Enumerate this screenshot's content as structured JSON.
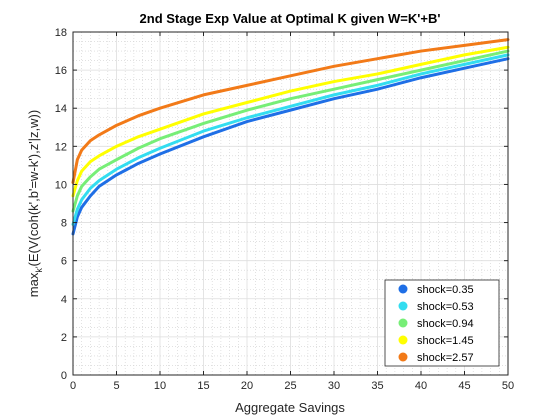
{
  "chart_data": {
    "type": "line",
    "title": "2nd Stage Exp Value at Optimal K given W=K'+B'",
    "xlabel": "Aggregate Savings",
    "ylabel_parts": [
      "max",
      "k'",
      "(E(V(coh(k',b'=w-k'),z'|z,w))"
    ],
    "xlim": [
      0,
      50
    ],
    "ylim": [
      0,
      18
    ],
    "xticks": [
      "0",
      "5",
      "10",
      "15",
      "20",
      "25",
      "30",
      "35",
      "40",
      "45",
      "50"
    ],
    "yticks": [
      "0",
      "2",
      "4",
      "6",
      "8",
      "10",
      "12",
      "14",
      "16",
      "18"
    ],
    "grid": true,
    "minor_grid": true,
    "legend_position": "bottom-right",
    "series": [
      {
        "name": "shock=0.35",
        "color": "#1f6fe6",
        "x": [
          0,
          0.5,
          1,
          2,
          3,
          5,
          7.5,
          10,
          15,
          20,
          25,
          30,
          35,
          40,
          45,
          50
        ],
        "values": [
          7.4,
          8.3,
          8.8,
          9.4,
          9.9,
          10.5,
          11.1,
          11.6,
          12.5,
          13.3,
          13.9,
          14.5,
          15.0,
          15.6,
          16.1,
          16.6
        ]
      },
      {
        "name": "shock=0.53",
        "color": "#33ddf0",
        "x": [
          0,
          0.5,
          1,
          2,
          3,
          5,
          7.5,
          10,
          15,
          20,
          25,
          30,
          35,
          40,
          45,
          50
        ],
        "values": [
          7.9,
          8.7,
          9.2,
          9.8,
          10.2,
          10.8,
          11.4,
          11.9,
          12.8,
          13.5,
          14.1,
          14.7,
          15.2,
          15.8,
          16.3,
          16.8
        ]
      },
      {
        "name": "shock=0.94",
        "color": "#77ee77",
        "x": [
          0,
          0.5,
          1,
          2,
          3,
          5,
          7.5,
          10,
          15,
          20,
          25,
          30,
          35,
          40,
          45,
          50
        ],
        "values": [
          8.6,
          9.4,
          9.9,
          10.4,
          10.8,
          11.3,
          11.9,
          12.4,
          13.2,
          13.9,
          14.5,
          15.0,
          15.5,
          16.0,
          16.5,
          17.0
        ]
      },
      {
        "name": "shock=1.45",
        "color": "#ffff00",
        "x": [
          0,
          0.5,
          1,
          2,
          3,
          5,
          7.5,
          10,
          15,
          20,
          25,
          30,
          35,
          40,
          45,
          50
        ],
        "values": [
          9.4,
          10.2,
          10.7,
          11.2,
          11.5,
          12.0,
          12.5,
          12.9,
          13.7,
          14.3,
          14.9,
          15.4,
          15.8,
          16.3,
          16.8,
          17.2
        ]
      },
      {
        "name": "shock=2.57",
        "color": "#f27a18",
        "x": [
          0,
          0.5,
          1,
          2,
          3,
          5,
          7.5,
          10,
          15,
          20,
          25,
          30,
          35,
          40,
          45,
          50
        ],
        "values": [
          10.1,
          11.3,
          11.8,
          12.3,
          12.6,
          13.1,
          13.6,
          14.0,
          14.7,
          15.2,
          15.7,
          16.2,
          16.6,
          17.0,
          17.3,
          17.6
        ]
      }
    ]
  }
}
